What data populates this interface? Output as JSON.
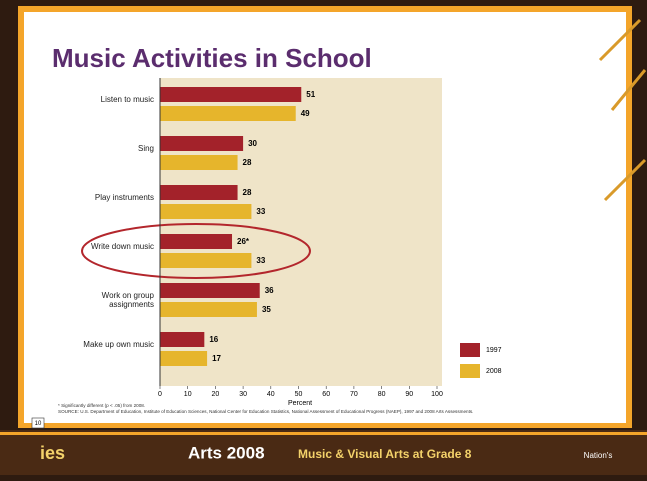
{
  "slide": {
    "title": "Music Activities in School",
    "slide_number": "10",
    "footer": {
      "logo": "ies",
      "program": "Arts 2008",
      "subtitle": "Music & Visual Arts at Grade 8",
      "badge": "Nation's"
    }
  },
  "chart_data": {
    "type": "bar",
    "orientation": "horizontal",
    "categories": [
      "Listen to music",
      "Sing",
      "Play instruments",
      "Write down music",
      "Work on group assignments",
      "Make up own music"
    ],
    "series": [
      {
        "name": "1997",
        "color": "#a3222a",
        "values": [
          51,
          30,
          28,
          26,
          36,
          16
        ],
        "value_labels": [
          "51",
          "30",
          "28",
          "26*",
          "36",
          "16"
        ]
      },
      {
        "name": "2008",
        "color": "#e6b52c",
        "values": [
          49,
          28,
          33,
          33,
          35,
          17
        ]
      }
    ],
    "xlim": [
      0,
      100
    ],
    "xticks": [
      0,
      10,
      20,
      30,
      40,
      50,
      60,
      70,
      80,
      90,
      100
    ],
    "xlabel": "Percent",
    "legend": "right",
    "notes": [
      "* Significantly different (p < .05) from 2008.",
      "SOURCE: U.S. Department of Education, Institute of Education Sciences, National Center for Education Statistics, National Assessment of Educational Progress (NAEP), 1997 and 2008 Arts Assessments."
    ]
  }
}
